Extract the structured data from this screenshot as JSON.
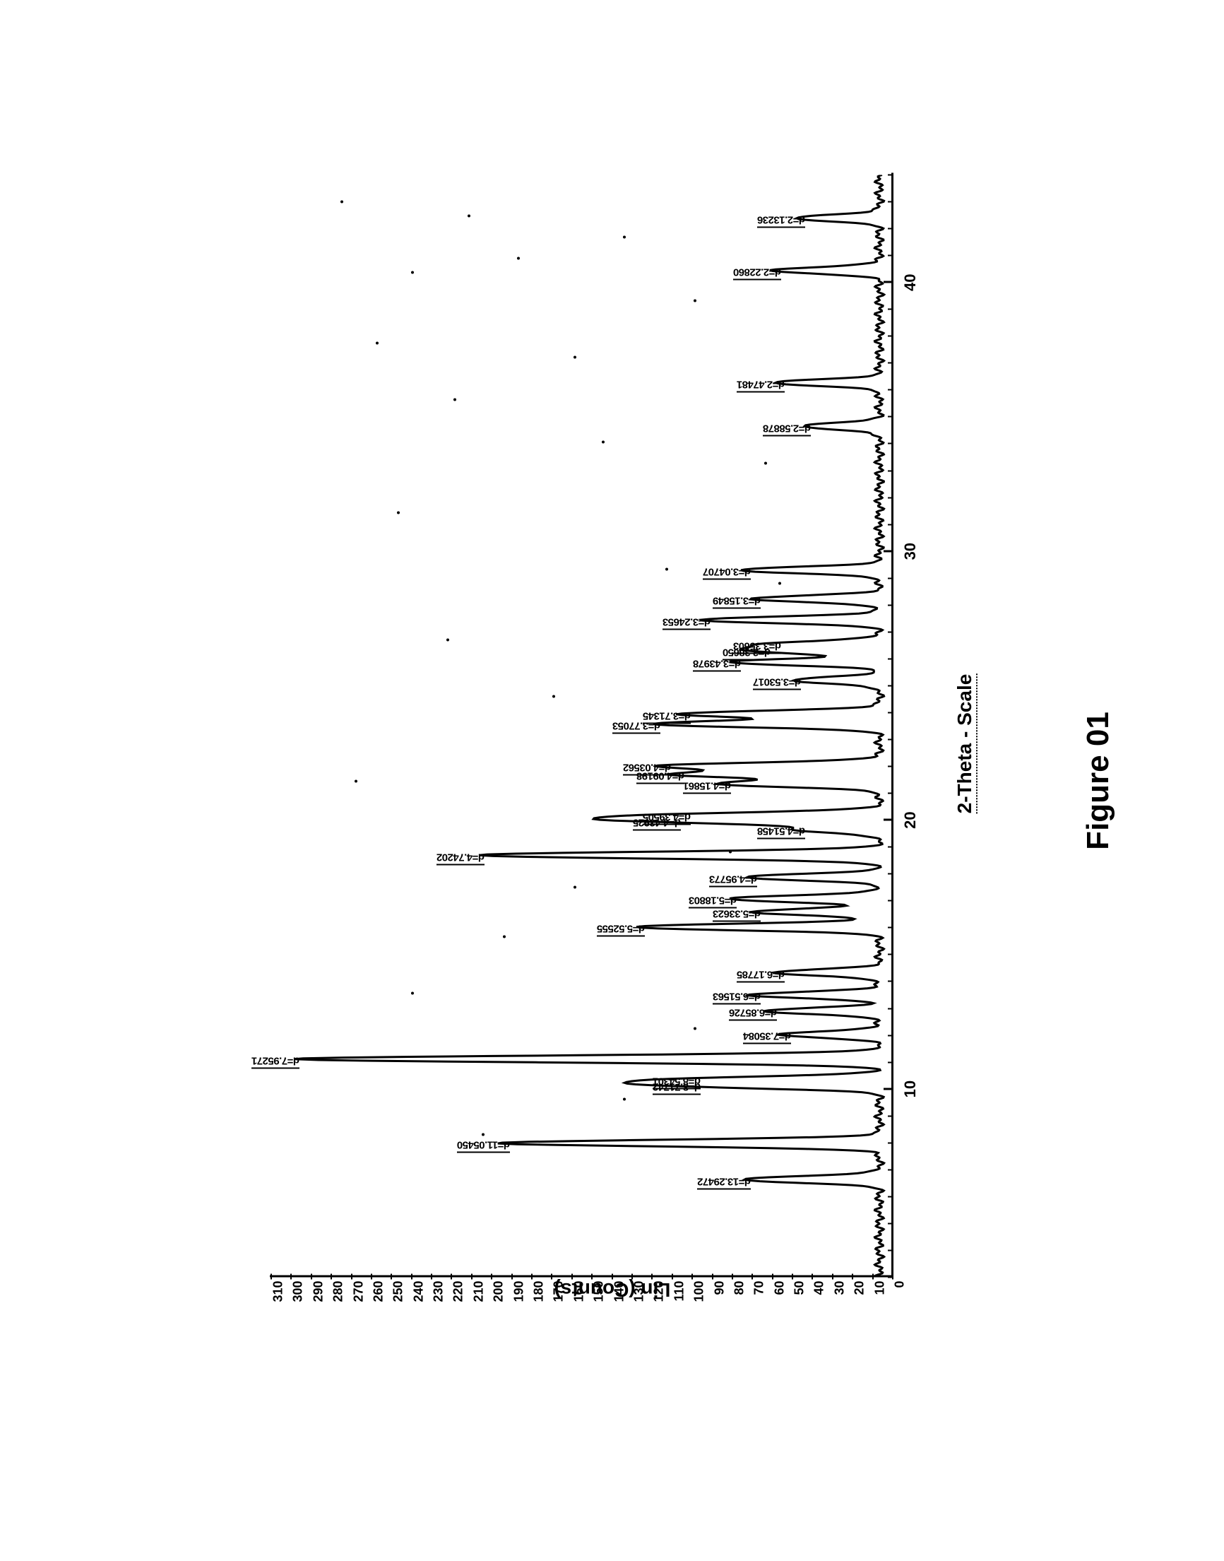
{
  "figure": {
    "caption": "Figure 01",
    "caption_fontsize": 44,
    "background_color": "#ffffff",
    "line_color": "#000000",
    "text_color": "#000000",
    "y_axis": {
      "label": "Lin (Counts)",
      "label_fontsize": 28,
      "min": 0,
      "max": 310,
      "tick_step": 10,
      "ticks": [
        0,
        10,
        20,
        30,
        40,
        50,
        60,
        70,
        80,
        90,
        100,
        110,
        120,
        130,
        140,
        150,
        160,
        170,
        180,
        190,
        200,
        210,
        220,
        230,
        240,
        250,
        260,
        270,
        280,
        290,
        300,
        310
      ]
    },
    "x_axis": {
      "label": "2-Theta - Scale",
      "label_fontsize": 28,
      "min": 3,
      "max": 44,
      "major_ticks": [
        10,
        20,
        30,
        40
      ],
      "minor_tick_step": 1
    },
    "spectrum_style": {
      "stroke_width": 3,
      "baseline_counts": 6,
      "noise_amplitude": 3,
      "peak_halfwidth_2theta": 0.25
    },
    "peaks": [
      {
        "two_theta": 6.64,
        "d_label": "d=13.29472",
        "counts": 75
      },
      {
        "two_theta": 7.99,
        "d_label": "d=11.05450",
        "counts": 195
      },
      {
        "two_theta": 10.14,
        "d_label": "d=8.71742",
        "counts": 100
      },
      {
        "two_theta": 10.35,
        "d_label": "d=8.54301",
        "counts": 100
      },
      {
        "two_theta": 11.12,
        "d_label": "d=7.95271",
        "counts": 300
      },
      {
        "two_theta": 12.03,
        "d_label": "d=7.35084",
        "counts": 55
      },
      {
        "two_theta": 12.9,
        "d_label": "d=6.85726",
        "counts": 62
      },
      {
        "two_theta": 13.5,
        "d_label": "d=6.51563",
        "counts": 70
      },
      {
        "two_theta": 14.33,
        "d_label": "d=6.17785",
        "counts": 58
      },
      {
        "two_theta": 16.03,
        "d_label": "d=5.52555",
        "counts": 128
      },
      {
        "two_theta": 16.59,
        "d_label": "d=5.33623",
        "counts": 70
      },
      {
        "two_theta": 17.08,
        "d_label": "d=5.18803",
        "counts": 82
      },
      {
        "two_theta": 17.88,
        "d_label": "d=4.95773",
        "counts": 72
      },
      {
        "two_theta": 18.7,
        "d_label": "d=4.74202",
        "counts": 208
      },
      {
        "two_theta": 19.65,
        "d_label": "d=4.51458",
        "counts": 48
      },
      {
        "two_theta": 19.98,
        "d_label": "d=4.43925",
        "counts": 110
      },
      {
        "two_theta": 20.18,
        "d_label": "d=4.39505",
        "counts": 105
      },
      {
        "two_theta": 21.35,
        "d_label": "d=4.15861",
        "counts": 85
      },
      {
        "two_theta": 21.7,
        "d_label": "d=4.09198",
        "counts": 108
      },
      {
        "two_theta": 22.02,
        "d_label": "d=4.03562",
        "counts": 115
      },
      {
        "two_theta": 23.58,
        "d_label": "d=3.77053",
        "counts": 120
      },
      {
        "two_theta": 23.95,
        "d_label": "d=3.71345",
        "counts": 105
      },
      {
        "two_theta": 25.2,
        "d_label": "d=3.53017",
        "counts": 50
      },
      {
        "two_theta": 25.88,
        "d_label": "d=3.43978",
        "counts": 80
      },
      {
        "two_theta": 26.3,
        "d_label": "d=3.38650",
        "counts": 65
      },
      {
        "two_theta": 26.55,
        "d_label": "d=3.35603",
        "counts": 60
      },
      {
        "two_theta": 27.45,
        "d_label": "d=3.24653",
        "counts": 95
      },
      {
        "two_theta": 28.23,
        "d_label": "d=3.15849",
        "counts": 70
      },
      {
        "two_theta": 29.3,
        "d_label": "d=3.04707",
        "counts": 75
      },
      {
        "two_theta": 34.65,
        "d_label": "d=2.58878",
        "counts": 45
      },
      {
        "two_theta": 36.27,
        "d_label": "d=2.47481",
        "counts": 58
      },
      {
        "two_theta": 40.45,
        "d_label": "d=2.22860",
        "counts": 60
      },
      {
        "two_theta": 42.4,
        "d_label": "d=2.13236",
        "counts": 48
      }
    ]
  }
}
